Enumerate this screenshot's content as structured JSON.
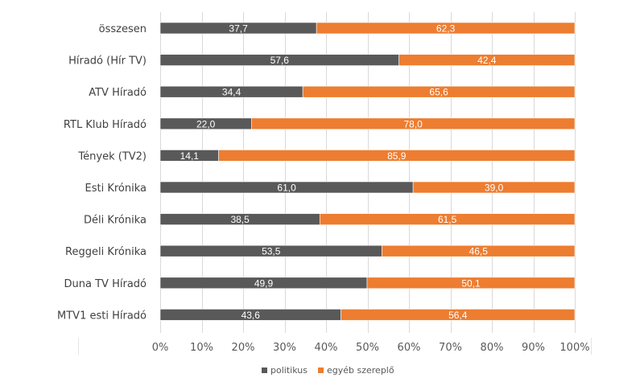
{
  "chart_data": {
    "type": "bar",
    "orientation": "horizontal",
    "stacked": "percent",
    "title": "",
    "xlabel": "",
    "ylabel": "",
    "xlim": [
      0,
      100
    ],
    "grid": true,
    "legend_position": "bottom",
    "categories": [
      "összesen",
      "Híradó (Hír TV)",
      "ATV Híradó",
      "RTL Klub Híradó",
      "Tények (TV2)",
      "Esti Krónika",
      "Déli Krónika",
      "Reggeli Krónika",
      "Duna TV Híradó",
      "MTV1 esti Híradó"
    ],
    "series": [
      {
        "name": "politikus",
        "color": "#595959",
        "values": [
          37.7,
          57.6,
          34.4,
          22.0,
          14.1,
          61.0,
          38.5,
          53.5,
          49.9,
          43.6
        ],
        "labels": [
          "37,7",
          "57,6",
          "34,4",
          "22,0",
          "14,1",
          "61,0",
          "38,5",
          "53,5",
          "49,9",
          "43,6"
        ]
      },
      {
        "name": "egyéb szereplő",
        "color": "#ED7D31",
        "values": [
          62.3,
          42.4,
          65.6,
          78.0,
          85.9,
          39.0,
          61.5,
          46.5,
          50.1,
          56.4
        ],
        "labels": [
          "62,3",
          "42,4",
          "65,6",
          "78,0",
          "85,9",
          "39,0",
          "61,5",
          "46,5",
          "50,1",
          "56,4"
        ]
      }
    ],
    "x_ticks": [
      "0%",
      "10%",
      "20%",
      "30%",
      "40%",
      "50%",
      "60%",
      "70%",
      "80%",
      "90%",
      "100%"
    ]
  }
}
